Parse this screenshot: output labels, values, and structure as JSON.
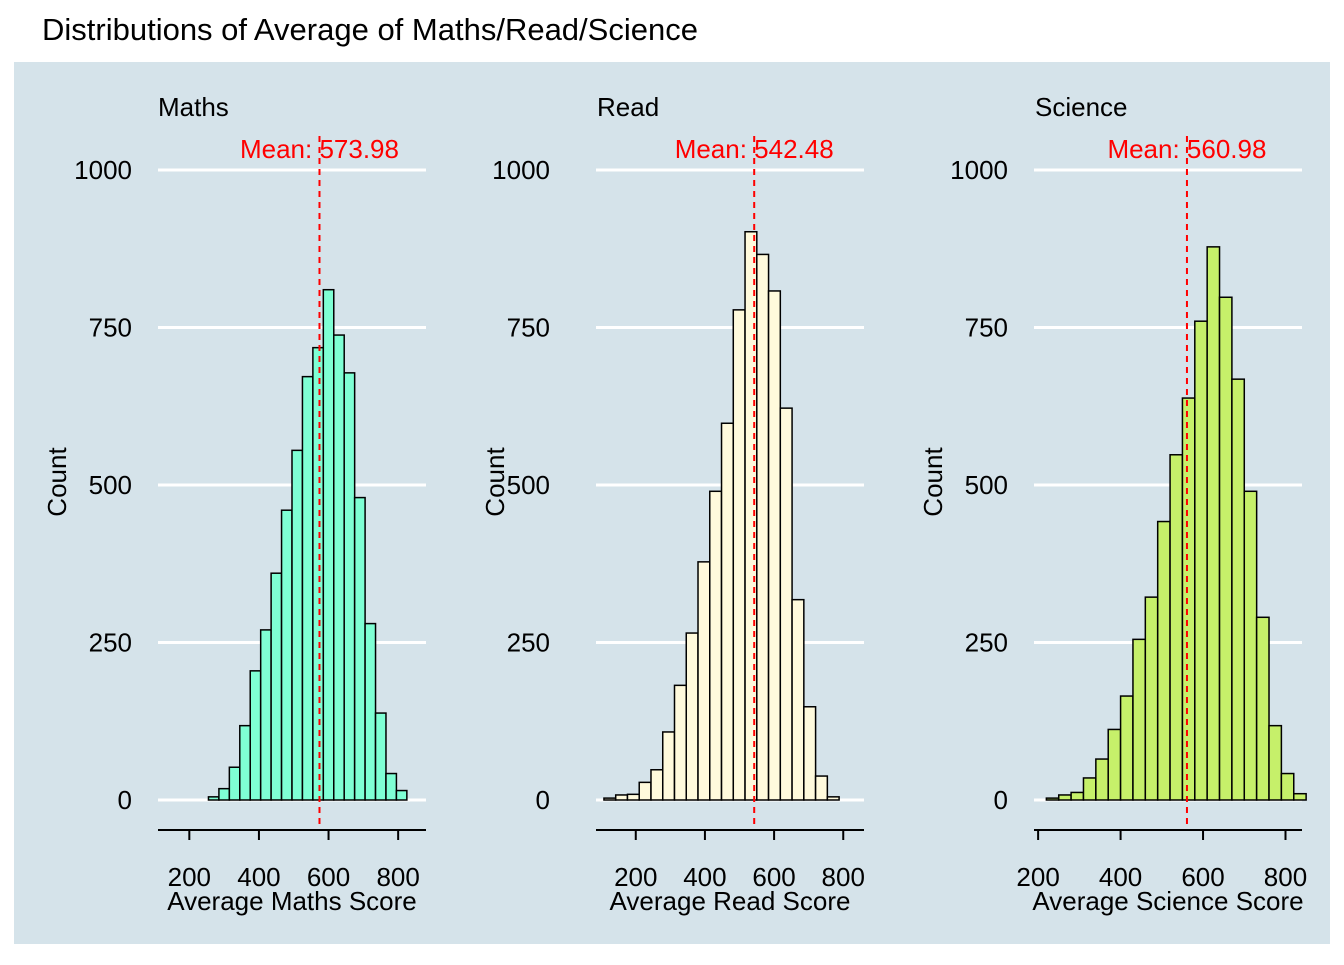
{
  "title": "Distributions of Average of Maths/Read/Science",
  "colors": {
    "panel_bg": "#d5e3ea",
    "grid": "#ffffff",
    "mean_line": "#ff0000",
    "bar_stroke": "#000000"
  },
  "chart_data": [
    {
      "type": "bar",
      "subtitle": "Maths",
      "xlabel": "Average Maths Score",
      "ylabel": "Count",
      "fill": "#7fffd4",
      "mean_label": "Mean: 573.98",
      "mean": 573.98,
      "bin_width": 30,
      "bin_start": 255,
      "counts": [
        5,
        18,
        52,
        118,
        205,
        270,
        360,
        460,
        555,
        672,
        718,
        810,
        738,
        678,
        480,
        280,
        138,
        42,
        15
      ],
      "x_ticks": [
        200,
        400,
        600,
        800
      ],
      "x_tick_labels": [
        "200",
        "400",
        "600",
        "800"
      ],
      "xlim": [
        110,
        880
      ],
      "y_ticks": [
        0,
        250,
        500,
        750,
        1000
      ],
      "y_tick_labels": [
        "0",
        "250",
        "500",
        "750",
        "1000"
      ],
      "ylim": [
        -48,
        1050
      ],
      "grid": true
    },
    {
      "type": "bar",
      "subtitle": "Read",
      "xlabel": "Average Read Score",
      "ylabel": "Count",
      "fill": "#fffadc",
      "mean_label": "Mean: 542.48",
      "mean": 542.48,
      "bin_width": 34,
      "bin_start": 108,
      "counts": [
        3,
        8,
        9,
        28,
        48,
        108,
        182,
        265,
        378,
        490,
        598,
        778,
        902,
        866,
        808,
        622,
        318,
        148,
        38,
        5
      ],
      "x_ticks": [
        200,
        400,
        600,
        800
      ],
      "x_tick_labels": [
        "200",
        "400",
        "600",
        "800"
      ],
      "xlim": [
        85,
        860
      ],
      "y_ticks": [
        0,
        250,
        500,
        750,
        1000
      ],
      "y_tick_labels": [
        "0",
        "250",
        "500",
        "750",
        "1000"
      ],
      "ylim": [
        -48,
        1050
      ],
      "grid": true
    },
    {
      "type": "bar",
      "subtitle": "Science",
      "xlabel": "Average Science Score",
      "ylabel": "Count",
      "fill": "#c6f06a",
      "mean_label": "Mean: 560.98",
      "mean": 560.98,
      "bin_width": 30,
      "bin_start": 220,
      "counts": [
        3,
        8,
        12,
        35,
        65,
        112,
        165,
        255,
        322,
        442,
        548,
        638,
        760,
        878,
        798,
        668,
        490,
        290,
        118,
        42,
        10
      ],
      "x_ticks": [
        200,
        400,
        600,
        800
      ],
      "x_tick_labels": [
        "200",
        "400",
        "600",
        "800"
      ],
      "xlim": [
        190,
        840
      ],
      "y_ticks": [
        0,
        250,
        500,
        750,
        1000
      ],
      "y_tick_labels": [
        "0",
        "250",
        "500",
        "750",
        "1000"
      ],
      "ylim": [
        -48,
        1050
      ],
      "grid": true
    }
  ]
}
